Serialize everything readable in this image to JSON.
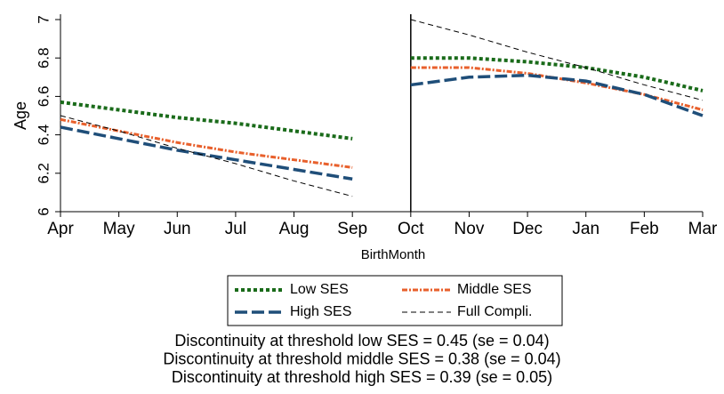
{
  "chart_data": {
    "type": "line",
    "categories": [
      "Apr",
      "May",
      "Jun",
      "Jul",
      "Aug",
      "Sep",
      "Oct",
      "Nov",
      "Dec",
      "Jan",
      "Feb",
      "Mar"
    ],
    "threshold": "Oct",
    "series": [
      {
        "name": "Low SES",
        "color": "#1a6b1a",
        "values": [
          6.57,
          6.53,
          6.49,
          6.46,
          6.42,
          6.38,
          6.8,
          6.8,
          6.78,
          6.75,
          6.7,
          6.63
        ]
      },
      {
        "name": "Middle SES",
        "color": "#e8602c",
        "values": [
          6.48,
          6.42,
          6.36,
          6.31,
          6.27,
          6.23,
          6.75,
          6.75,
          6.72,
          6.67,
          6.61,
          6.53
        ]
      },
      {
        "name": "High SES",
        "color": "#1f4e79",
        "values": [
          6.44,
          6.38,
          6.32,
          6.27,
          6.22,
          6.17,
          6.66,
          6.7,
          6.71,
          6.68,
          6.61,
          6.5
        ]
      },
      {
        "name": "Full Compli.",
        "color": "#000000",
        "values": [
          6.5,
          6.42,
          6.33,
          6.25,
          6.16,
          6.08,
          7.0,
          6.92,
          6.83,
          6.75,
          6.66,
          6.58
        ]
      }
    ],
    "ylim": [
      6,
      7
    ],
    "yticks": [
      6,
      6.2,
      6.4,
      6.6,
      6.8,
      7
    ],
    "ylabel": "Age",
    "xlabel": "BirthMonth",
    "notes": [
      "Discontinuity at threshold low SES = 0.45 (se = 0.04)",
      "Discontinuity at threshold middle SES = 0.38 (se = 0.04)",
      "Discontinuity at threshold high SES = 0.39 (se = 0.05)"
    ]
  }
}
